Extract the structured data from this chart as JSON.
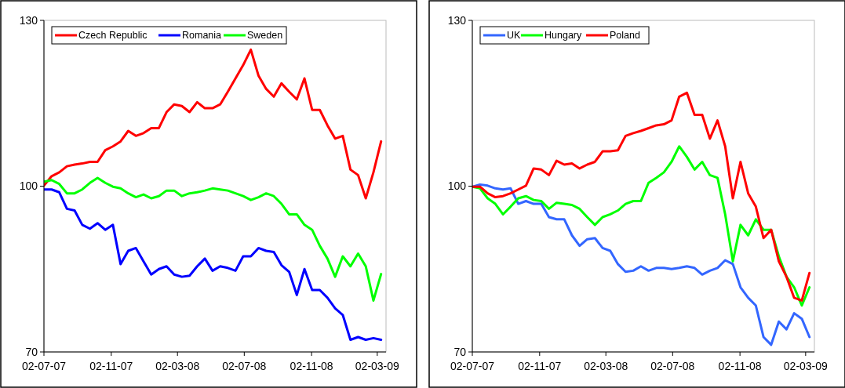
{
  "chart_data": [
    {
      "type": "line",
      "x": [
        "2007-07-02",
        "2007-07-16",
        "2007-07-30",
        "2007-08-13",
        "2007-08-27",
        "2007-09-10",
        "2007-09-24",
        "2007-10-08",
        "2007-10-22",
        "2007-11-05",
        "2007-11-19",
        "2007-12-03",
        "2007-12-17",
        "2007-12-31",
        "2008-01-14",
        "2008-01-28",
        "2008-02-11",
        "2008-02-25",
        "2008-03-10",
        "2008-03-24",
        "2008-04-07",
        "2008-04-21",
        "2008-05-05",
        "2008-05-19",
        "2008-06-02",
        "2008-06-16",
        "2008-06-30",
        "2008-07-14",
        "2008-07-28",
        "2008-08-11",
        "2008-08-25",
        "2008-09-08",
        "2008-09-22",
        "2008-10-06",
        "2008-10-20",
        "2008-11-03",
        "2008-11-17",
        "2008-12-01",
        "2008-12-15",
        "2008-12-29",
        "2009-01-12",
        "2009-01-26",
        "2009-02-09",
        "2009-02-23",
        "2009-03-09"
      ],
      "series": [
        {
          "name": "Czech Republic",
          "color": "#ff0000",
          "values": [
            100.1,
            101.8,
            102.5,
            103.6,
            103.9,
            104.1,
            104.4,
            104.4,
            106.5,
            107.2,
            108.1,
            110.0,
            109.1,
            109.6,
            110.5,
            110.5,
            113.4,
            114.8,
            114.5,
            113.4,
            115.2,
            114.1,
            114.1,
            114.8,
            117.1,
            119.5,
            121.9,
            124.7,
            120.0,
            117.6,
            116.2,
            118.6,
            117.1,
            115.7,
            119.5,
            113.8,
            113.8,
            111.0,
            108.6,
            109.1,
            103.0,
            102.0,
            97.8,
            102.5,
            108.1
          ]
        },
        {
          "name": "Romania",
          "color": "#0000ff",
          "values": [
            99.4,
            99.4,
            98.9,
            95.9,
            95.6,
            93.0,
            92.3,
            93.3,
            92.1,
            93.0,
            85.9,
            88.3,
            88.8,
            86.4,
            84.0,
            85.0,
            85.5,
            84.0,
            83.6,
            83.8,
            85.5,
            86.9,
            84.7,
            85.5,
            85.2,
            84.7,
            87.3,
            87.3,
            88.8,
            88.3,
            88.1,
            85.7,
            84.5,
            80.3,
            85.0,
            81.2,
            81.2,
            79.8,
            77.9,
            76.7,
            72.2,
            72.7,
            72.2,
            72.5,
            72.2
          ]
        },
        {
          "name": "Sweden",
          "color": "#00ff00",
          "values": [
            100.8,
            101.1,
            100.4,
            98.7,
            98.7,
            99.4,
            100.6,
            101.5,
            100.6,
            99.9,
            99.6,
            98.7,
            98.0,
            98.5,
            97.8,
            98.2,
            99.2,
            99.2,
            98.2,
            98.7,
            98.9,
            99.2,
            99.6,
            99.4,
            99.2,
            98.7,
            98.2,
            97.5,
            98.0,
            98.7,
            98.2,
            96.8,
            94.9,
            94.9,
            93.0,
            92.1,
            89.2,
            86.9,
            83.6,
            87.3,
            85.5,
            87.8,
            85.5,
            79.3,
            84.1
          ]
        }
      ],
      "xlim": [
        "2007-07-02",
        "2009-03-18"
      ],
      "xticks": [
        {
          "value": "2007-07-02",
          "label": "02-07-07"
        },
        {
          "value": "2007-11-02",
          "label": "02-11-07"
        },
        {
          "value": "2008-03-02",
          "label": "02-03-08"
        },
        {
          "value": "2008-07-02",
          "label": "02-07-08"
        },
        {
          "value": "2008-11-02",
          "label": "02-11-08"
        },
        {
          "value": "2009-03-02",
          "label": "02-03-09"
        }
      ],
      "ylim": [
        70,
        130
      ],
      "yticks": [
        70,
        100,
        130
      ],
      "legend": "top left"
    },
    {
      "type": "line",
      "x": [
        "2007-07-02",
        "2007-07-16",
        "2007-07-30",
        "2007-08-13",
        "2007-08-27",
        "2007-09-10",
        "2007-09-24",
        "2007-10-08",
        "2007-10-22",
        "2007-11-05",
        "2007-11-19",
        "2007-12-03",
        "2007-12-17",
        "2007-12-31",
        "2008-01-14",
        "2008-01-28",
        "2008-02-11",
        "2008-02-25",
        "2008-03-10",
        "2008-03-24",
        "2008-04-07",
        "2008-04-21",
        "2008-05-05",
        "2008-05-19",
        "2008-06-02",
        "2008-06-16",
        "2008-06-30",
        "2008-07-14",
        "2008-07-28",
        "2008-08-11",
        "2008-08-25",
        "2008-09-08",
        "2008-09-22",
        "2008-10-06",
        "2008-10-20",
        "2008-11-03",
        "2008-11-17",
        "2008-12-01",
        "2008-12-15",
        "2008-12-29",
        "2009-01-12",
        "2009-01-26",
        "2009-02-09",
        "2009-02-23",
        "2009-03-09"
      ],
      "series": [
        {
          "name": "UK",
          "color": "#3366ff",
          "values": [
            99.9,
            100.3,
            100.1,
            99.6,
            99.4,
            99.6,
            96.8,
            97.3,
            96.8,
            96.8,
            94.4,
            94.0,
            94.0,
            91.1,
            89.2,
            90.4,
            90.6,
            88.8,
            88.3,
            85.9,
            84.5,
            84.7,
            85.5,
            84.7,
            85.2,
            85.2,
            85.0,
            85.2,
            85.5,
            85.2,
            84.0,
            84.7,
            85.2,
            86.6,
            85.9,
            81.7,
            79.8,
            78.4,
            72.7,
            71.3,
            75.5,
            74.1,
            77.0,
            76.0,
            72.7
          ]
        },
        {
          "name": "Hungary",
          "color": "#00ff00",
          "values": [
            99.9,
            99.6,
            97.8,
            96.8,
            94.9,
            96.3,
            97.8,
            98.2,
            97.5,
            97.3,
            95.9,
            97.0,
            96.8,
            96.6,
            95.9,
            94.4,
            93.0,
            94.4,
            94.9,
            95.6,
            96.8,
            97.3,
            97.3,
            100.6,
            101.5,
            102.5,
            104.4,
            107.2,
            105.3,
            103.0,
            104.4,
            102.0,
            101.5,
            94.9,
            86.4,
            93.0,
            91.1,
            94.0,
            92.1,
            92.1,
            87.3,
            83.6,
            81.7,
            78.4,
            81.7
          ]
        },
        {
          "name": "Poland",
          "color": "#ff0000",
          "values": [
            99.9,
            99.9,
            98.7,
            98.0,
            98.2,
            98.7,
            99.4,
            100.1,
            103.2,
            103.0,
            102.0,
            104.6,
            103.9,
            104.1,
            103.2,
            103.9,
            104.4,
            106.3,
            106.3,
            106.5,
            109.1,
            109.6,
            110.0,
            110.5,
            111.0,
            111.2,
            111.9,
            116.2,
            116.9,
            112.9,
            112.9,
            108.6,
            111.9,
            107.2,
            97.8,
            104.4,
            98.7,
            96.3,
            90.6,
            92.1,
            86.4,
            83.6,
            79.8,
            79.3,
            84.3
          ]
        }
      ],
      "xlim": [
        "2007-07-02",
        "2009-03-18"
      ],
      "xticks": [
        {
          "value": "2007-07-02",
          "label": "02-07-07"
        },
        {
          "value": "2007-11-02",
          "label": "02-11-07"
        },
        {
          "value": "2008-03-02",
          "label": "02-03-08"
        },
        {
          "value": "2008-07-02",
          "label": "02-07-08"
        },
        {
          "value": "2008-11-02",
          "label": "02-11-08"
        },
        {
          "value": "2009-03-02",
          "label": "02-03-09"
        }
      ],
      "ylim": [
        70,
        130
      ],
      "yticks": [
        70,
        100,
        130
      ],
      "legend": "top left"
    }
  ]
}
